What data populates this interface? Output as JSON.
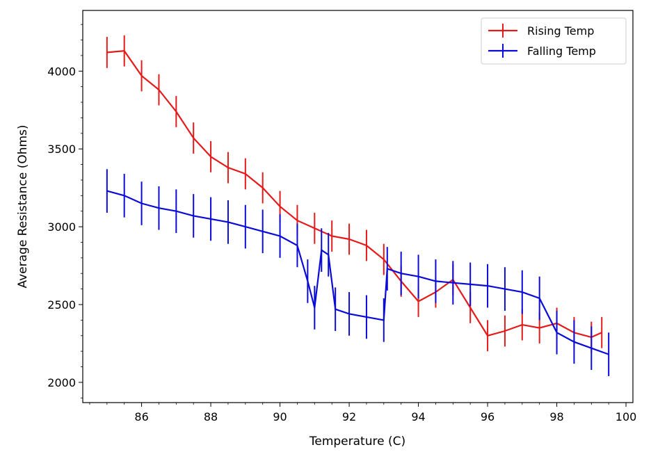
{
  "chart_data": {
    "type": "line",
    "title": "",
    "xlabel": "Temperature (C)",
    "ylabel": "Average Resistance (Ohms)",
    "xlim": [
      84.3,
      100.2
    ],
    "ylim": [
      1870,
      4390
    ],
    "xticks": [
      86,
      88,
      90,
      92,
      94,
      96,
      98,
      100
    ],
    "yticks": [
      2000,
      2500,
      3000,
      3500,
      4000
    ],
    "legend_position": "top-right",
    "grid": false,
    "series": [
      {
        "name": "Rising Temp",
        "color": "#e41a1a",
        "x": [
          85.0,
          85.5,
          86.0,
          86.5,
          87.0,
          87.5,
          88.0,
          88.5,
          89.0,
          89.5,
          90.0,
          90.5,
          91.0,
          91.5,
          92.0,
          92.5,
          93.0,
          93.5,
          94.0,
          94.5,
          95.0,
          95.5,
          96.0,
          96.5,
          97.0,
          97.5,
          98.0,
          98.5,
          99.0,
          99.3
        ],
        "y": [
          4120,
          4130,
          3970,
          3880,
          3740,
          3570,
          3450,
          3380,
          3340,
          3250,
          3130,
          3040,
          2990,
          2940,
          2920,
          2880,
          2790,
          2650,
          2520,
          2580,
          2660,
          2480,
          2300,
          2330,
          2370,
          2350,
          2380,
          2320,
          2290,
          2320
        ],
        "yerr": 100
      },
      {
        "name": "Falling Temp",
        "color": "#0a0ad9",
        "x": [
          85.0,
          85.5,
          86.0,
          86.5,
          87.0,
          87.5,
          88.0,
          88.5,
          89.0,
          89.5,
          90.0,
          90.5,
          90.8,
          91.0,
          91.2,
          91.4,
          91.6,
          92.0,
          92.5,
          93.0,
          93.1,
          93.5,
          94.0,
          94.5,
          95.0,
          95.5,
          96.0,
          96.5,
          97.0,
          97.5,
          98.0,
          98.5,
          99.0,
          99.5
        ],
        "y": [
          3230,
          3200,
          3150,
          3120,
          3100,
          3070,
          3050,
          3030,
          3000,
          2970,
          2940,
          2880,
          2650,
          2480,
          2850,
          2820,
          2470,
          2440,
          2420,
          2400,
          2730,
          2700,
          2680,
          2650,
          2640,
          2630,
          2620,
          2600,
          2580,
          2540,
          2320,
          2260,
          2220,
          2180
        ],
        "yerr": 140
      }
    ]
  }
}
